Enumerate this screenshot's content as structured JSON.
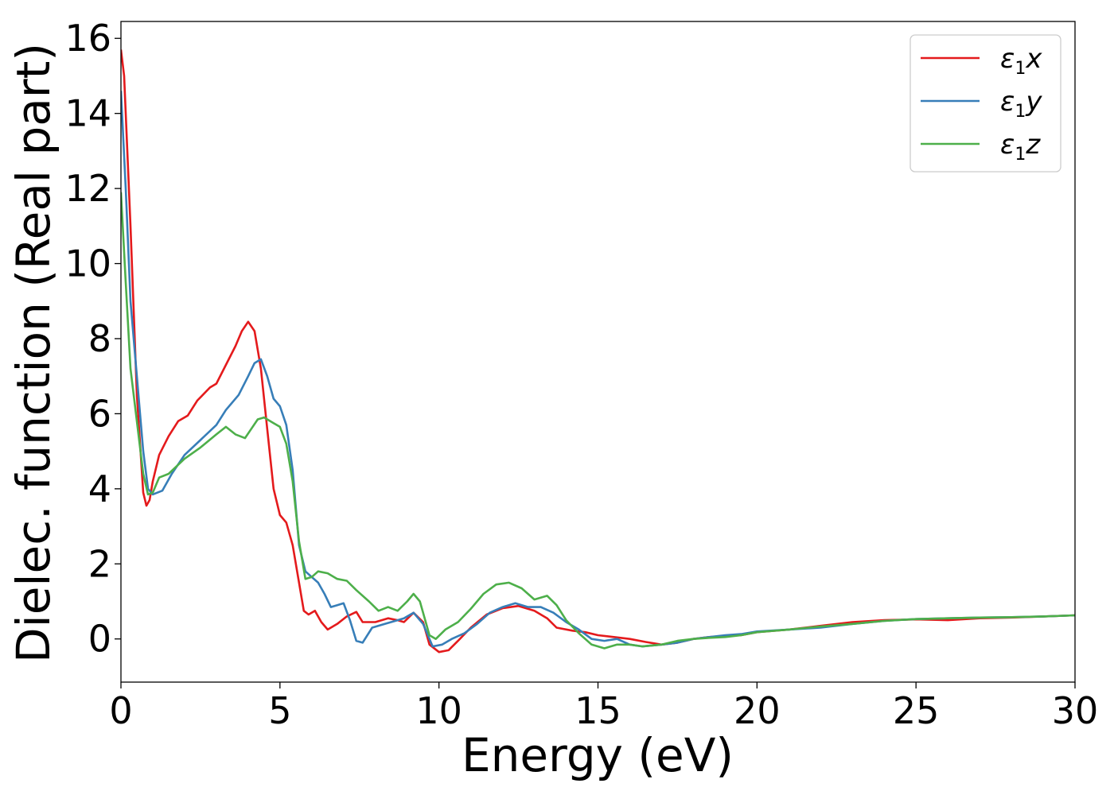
{
  "chart_data": {
    "type": "line",
    "xlabel": "Energy (eV)",
    "ylabel": "Dielec. function (Real part)",
    "xlim": [
      0,
      30
    ],
    "ylim": [
      -1.15,
      16.45
    ],
    "xticks": [
      0,
      5,
      10,
      15,
      20,
      25,
      30
    ],
    "yticks": [
      0,
      2,
      4,
      6,
      8,
      10,
      12,
      14,
      16
    ],
    "grid": false,
    "legend_position": "top-right",
    "series": [
      {
        "name": "ε1x",
        "legend_base": "ε",
        "legend_sub": "1",
        "legend_var": "x",
        "color": "#e41a1c",
        "points": [
          [
            0,
            15.7
          ],
          [
            0.1,
            15.0
          ],
          [
            0.3,
            11.0
          ],
          [
            0.5,
            6.5
          ],
          [
            0.7,
            3.9
          ],
          [
            0.8,
            3.55
          ],
          [
            0.9,
            3.7
          ],
          [
            1.0,
            4.2
          ],
          [
            1.2,
            4.9
          ],
          [
            1.5,
            5.4
          ],
          [
            1.8,
            5.8
          ],
          [
            2.1,
            5.95
          ],
          [
            2.4,
            6.35
          ],
          [
            2.8,
            6.7
          ],
          [
            3.0,
            6.8
          ],
          [
            3.3,
            7.3
          ],
          [
            3.6,
            7.8
          ],
          [
            3.8,
            8.2
          ],
          [
            4.0,
            8.45
          ],
          [
            4.2,
            8.2
          ],
          [
            4.4,
            7.2
          ],
          [
            4.6,
            5.6
          ],
          [
            4.8,
            4.0
          ],
          [
            5.0,
            3.3
          ],
          [
            5.2,
            3.1
          ],
          [
            5.4,
            2.5
          ],
          [
            5.6,
            1.5
          ],
          [
            5.75,
            0.75
          ],
          [
            5.9,
            0.65
          ],
          [
            6.1,
            0.75
          ],
          [
            6.3,
            0.45
          ],
          [
            6.5,
            0.25
          ],
          [
            6.8,
            0.4
          ],
          [
            7.1,
            0.6
          ],
          [
            7.4,
            0.72
          ],
          [
            7.6,
            0.45
          ],
          [
            8.0,
            0.45
          ],
          [
            8.4,
            0.55
          ],
          [
            8.7,
            0.5
          ],
          [
            8.9,
            0.45
          ],
          [
            9.2,
            0.7
          ],
          [
            9.5,
            0.45
          ],
          [
            9.7,
            -0.15
          ],
          [
            10.0,
            -0.35
          ],
          [
            10.3,
            -0.3
          ],
          [
            10.6,
            -0.05
          ],
          [
            11.0,
            0.3
          ],
          [
            11.5,
            0.65
          ],
          [
            12.0,
            0.82
          ],
          [
            12.5,
            0.88
          ],
          [
            13.0,
            0.75
          ],
          [
            13.4,
            0.55
          ],
          [
            13.7,
            0.3
          ],
          [
            14.2,
            0.22
          ],
          [
            14.6,
            0.18
          ],
          [
            15.0,
            0.1
          ],
          [
            15.5,
            0.05
          ],
          [
            16.0,
            0.0
          ],
          [
            16.5,
            -0.08
          ],
          [
            17.0,
            -0.15
          ],
          [
            17.5,
            -0.1
          ],
          [
            18.0,
            0.0
          ],
          [
            18.5,
            0.05
          ],
          [
            19.0,
            0.08
          ],
          [
            19.5,
            0.1
          ],
          [
            20.0,
            0.18
          ],
          [
            21.0,
            0.25
          ],
          [
            22.0,
            0.35
          ],
          [
            23.0,
            0.45
          ],
          [
            24.0,
            0.5
          ],
          [
            25.0,
            0.52
          ],
          [
            26.0,
            0.5
          ],
          [
            27.0,
            0.55
          ],
          [
            28.0,
            0.57
          ],
          [
            29.0,
            0.6
          ],
          [
            30.0,
            0.63
          ]
        ]
      },
      {
        "name": "ε1y",
        "legend_base": "ε",
        "legend_sub": "1",
        "legend_var": "y",
        "color": "#377eb8",
        "points": [
          [
            0,
            14.6
          ],
          [
            0.15,
            12.0
          ],
          [
            0.3,
            9.0
          ],
          [
            0.5,
            7.0
          ],
          [
            0.7,
            5.0
          ],
          [
            0.85,
            4.0
          ],
          [
            1.0,
            3.85
          ],
          [
            1.3,
            3.95
          ],
          [
            1.6,
            4.4
          ],
          [
            2.0,
            4.9
          ],
          [
            2.5,
            5.3
          ],
          [
            3.0,
            5.7
          ],
          [
            3.3,
            6.1
          ],
          [
            3.7,
            6.5
          ],
          [
            4.0,
            7.0
          ],
          [
            4.2,
            7.35
          ],
          [
            4.4,
            7.45
          ],
          [
            4.6,
            7.0
          ],
          [
            4.8,
            6.4
          ],
          [
            5.0,
            6.2
          ],
          [
            5.2,
            5.7
          ],
          [
            5.4,
            4.5
          ],
          [
            5.6,
            2.5
          ],
          [
            5.8,
            1.8
          ],
          [
            6.0,
            1.65
          ],
          [
            6.2,
            1.5
          ],
          [
            6.4,
            1.2
          ],
          [
            6.6,
            0.85
          ],
          [
            6.8,
            0.9
          ],
          [
            7.0,
            0.95
          ],
          [
            7.2,
            0.5
          ],
          [
            7.4,
            -0.05
          ],
          [
            7.6,
            -0.1
          ],
          [
            7.9,
            0.3
          ],
          [
            8.3,
            0.4
          ],
          [
            8.7,
            0.5
          ],
          [
            8.9,
            0.55
          ],
          [
            9.2,
            0.7
          ],
          [
            9.5,
            0.4
          ],
          [
            9.8,
            -0.2
          ],
          [
            10.1,
            -0.15
          ],
          [
            10.4,
            0.0
          ],
          [
            10.8,
            0.15
          ],
          [
            11.2,
            0.4
          ],
          [
            11.6,
            0.7
          ],
          [
            12.0,
            0.85
          ],
          [
            12.4,
            0.95
          ],
          [
            12.8,
            0.85
          ],
          [
            13.2,
            0.85
          ],
          [
            13.6,
            0.7
          ],
          [
            14.0,
            0.45
          ],
          [
            14.4,
            0.25
          ],
          [
            14.8,
            0.0
          ],
          [
            15.2,
            -0.05
          ],
          [
            15.6,
            0.0
          ],
          [
            16.0,
            -0.15
          ],
          [
            16.4,
            -0.2
          ],
          [
            17.0,
            -0.15
          ],
          [
            17.5,
            -0.1
          ],
          [
            18.0,
            0.0
          ],
          [
            18.5,
            0.05
          ],
          [
            19.0,
            0.1
          ],
          [
            19.5,
            0.13
          ],
          [
            20.0,
            0.2
          ],
          [
            21.0,
            0.25
          ],
          [
            22.0,
            0.3
          ],
          [
            23.0,
            0.4
          ],
          [
            24.0,
            0.48
          ],
          [
            25.0,
            0.53
          ],
          [
            26.0,
            0.55
          ],
          [
            27.0,
            0.57
          ],
          [
            28.0,
            0.58
          ],
          [
            29.0,
            0.6
          ],
          [
            30.0,
            0.63
          ]
        ]
      },
      {
        "name": "ε1z",
        "legend_base": "ε",
        "legend_sub": "1",
        "legend_var": "z",
        "color": "#4daf4a",
        "points": [
          [
            0,
            11.9
          ],
          [
            0.15,
            9.5
          ],
          [
            0.3,
            7.2
          ],
          [
            0.5,
            5.8
          ],
          [
            0.7,
            4.4
          ],
          [
            0.85,
            3.85
          ],
          [
            1.0,
            3.9
          ],
          [
            1.2,
            4.3
          ],
          [
            1.5,
            4.4
          ],
          [
            2.0,
            4.8
          ],
          [
            2.5,
            5.1
          ],
          [
            3.0,
            5.45
          ],
          [
            3.3,
            5.65
          ],
          [
            3.6,
            5.45
          ],
          [
            3.9,
            5.35
          ],
          [
            4.1,
            5.6
          ],
          [
            4.3,
            5.85
          ],
          [
            4.5,
            5.9
          ],
          [
            4.8,
            5.75
          ],
          [
            5.0,
            5.65
          ],
          [
            5.2,
            5.2
          ],
          [
            5.4,
            4.2
          ],
          [
            5.6,
            2.6
          ],
          [
            5.8,
            1.6
          ],
          [
            6.0,
            1.65
          ],
          [
            6.2,
            1.8
          ],
          [
            6.5,
            1.75
          ],
          [
            6.8,
            1.6
          ],
          [
            7.1,
            1.55
          ],
          [
            7.4,
            1.3
          ],
          [
            7.8,
            1.0
          ],
          [
            8.1,
            0.75
          ],
          [
            8.4,
            0.85
          ],
          [
            8.7,
            0.75
          ],
          [
            9.0,
            1.0
          ],
          [
            9.2,
            1.2
          ],
          [
            9.4,
            1.0
          ],
          [
            9.7,
            0.1
          ],
          [
            9.9,
            0.0
          ],
          [
            10.2,
            0.25
          ],
          [
            10.6,
            0.45
          ],
          [
            11.0,
            0.8
          ],
          [
            11.4,
            1.2
          ],
          [
            11.8,
            1.45
          ],
          [
            12.2,
            1.5
          ],
          [
            12.6,
            1.35
          ],
          [
            13.0,
            1.05
          ],
          [
            13.4,
            1.15
          ],
          [
            13.7,
            0.9
          ],
          [
            14.0,
            0.5
          ],
          [
            14.4,
            0.15
          ],
          [
            14.8,
            -0.15
          ],
          [
            15.2,
            -0.25
          ],
          [
            15.6,
            -0.15
          ],
          [
            16.0,
            -0.15
          ],
          [
            16.4,
            -0.2
          ],
          [
            17.0,
            -0.15
          ],
          [
            17.5,
            -0.05
          ],
          [
            18.0,
            0.0
          ],
          [
            18.5,
            0.03
          ],
          [
            19.0,
            0.05
          ],
          [
            19.5,
            0.1
          ],
          [
            20.0,
            0.18
          ],
          [
            21.0,
            0.25
          ],
          [
            22.0,
            0.33
          ],
          [
            23.0,
            0.4
          ],
          [
            24.0,
            0.48
          ],
          [
            25.0,
            0.53
          ],
          [
            26.0,
            0.55
          ],
          [
            27.0,
            0.57
          ],
          [
            28.0,
            0.58
          ],
          [
            29.0,
            0.6
          ],
          [
            30.0,
            0.63
          ]
        ]
      }
    ]
  }
}
